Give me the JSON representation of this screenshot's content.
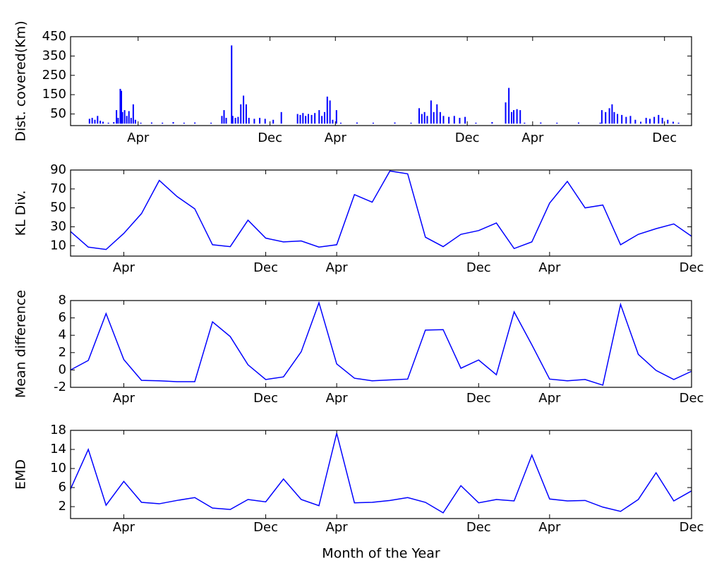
{
  "chart_data": [
    {
      "type": "bar",
      "ylabel": "Dist. covered(Km)",
      "color": "#0000ff",
      "x": [
        35,
        40,
        45,
        50,
        55,
        60,
        70,
        80,
        85,
        88,
        92,
        94,
        96,
        100,
        104,
        108,
        112,
        116,
        120,
        130,
        150,
        170,
        190,
        210,
        230,
        260,
        280,
        284,
        288,
        298,
        300,
        305,
        310,
        315,
        320,
        325,
        330,
        340,
        350,
        360,
        375,
        390,
        420,
        425,
        430,
        435,
        440,
        446,
        452,
        460,
        465,
        470,
        475,
        480,
        485,
        492,
        500,
        530,
        560,
        600,
        630,
        645,
        650,
        655,
        660,
        667,
        672,
        678,
        684,
        690,
        700,
        710,
        720,
        730,
        750,
        780,
        805,
        811,
        816,
        820,
        826,
        832,
        840,
        870,
        900,
        940,
        980,
        983,
        990,
        997,
        1002,
        1006,
        1012,
        1020,
        1028,
        1036,
        1045,
        1055,
        1065,
        1072,
        1080,
        1088,
        1095,
        1105,
        1115,
        1125
      ],
      "values": [
        25,
        30,
        20,
        40,
        15,
        10,
        5,
        8,
        70,
        30,
        180,
        170,
        60,
        70,
        40,
        65,
        30,
        100,
        20,
        5,
        6,
        5,
        8,
        5,
        6,
        5,
        40,
        70,
        30,
        405,
        40,
        30,
        35,
        100,
        145,
        100,
        30,
        25,
        30,
        25,
        20,
        60,
        50,
        45,
        55,
        40,
        50,
        45,
        55,
        70,
        40,
        60,
        140,
        120,
        20,
        70,
        5,
        6,
        5,
        6,
        5,
        80,
        50,
        60,
        40,
        120,
        60,
        100,
        60,
        40,
        35,
        40,
        30,
        35,
        5,
        8,
        110,
        185,
        60,
        70,
        75,
        70,
        5,
        6,
        5,
        6,
        5,
        70,
        60,
        80,
        100,
        60,
        50,
        45,
        35,
        40,
        20,
        10,
        30,
        25,
        35,
        45,
        30,
        20,
        10,
        5
      ],
      "xlim": [
        0,
        1149
      ],
      "xticks": [
        {
          "value": 125,
          "label": "Apr"
        },
        {
          "value": 369,
          "label": "Dec"
        },
        {
          "value": 490,
          "label": "Apr"
        },
        {
          "value": 734,
          "label": "Dec"
        },
        {
          "value": 855,
          "label": "Apr"
        },
        {
          "value": 1099,
          "label": "Dec"
        }
      ],
      "ylim": [
        -10,
        450
      ],
      "yticks": [
        50,
        150,
        250,
        350,
        450
      ]
    },
    {
      "type": "line",
      "ylabel": "KL Div.",
      "color": "#0000ff",
      "categories": [
        null,
        null,
        null,
        "Apr",
        null,
        null,
        null,
        null,
        null,
        null,
        null,
        "Dec",
        null,
        null,
        null,
        "Apr",
        null,
        null,
        null,
        null,
        null,
        null,
        null,
        "Dec",
        null,
        null,
        null,
        "Apr",
        null,
        null,
        null,
        null,
        null,
        null,
        null,
        "Dec"
      ],
      "values": [
        25,
        8.5,
        6,
        23,
        44,
        79,
        62,
        49,
        11,
        9,
        37,
        18,
        14,
        15,
        8.5,
        11,
        64,
        56,
        89,
        86,
        19,
        9,
        22,
        26,
        34,
        7,
        14,
        55,
        78,
        50,
        53,
        11,
        22,
        28,
        33,
        20
      ],
      "ylim": [
        -1,
        90
      ],
      "yticks": [
        10,
        30,
        50,
        70,
        90
      ]
    },
    {
      "type": "line",
      "ylabel": "Mean difference",
      "color": "#0000ff",
      "categories": [
        null,
        null,
        null,
        "Apr",
        null,
        null,
        null,
        null,
        null,
        null,
        null,
        "Dec",
        null,
        null,
        null,
        "Apr",
        null,
        null,
        null,
        null,
        null,
        null,
        null,
        "Dec",
        null,
        null,
        null,
        "Apr",
        null,
        null,
        null,
        null,
        null,
        null,
        null,
        "Dec"
      ],
      "values": [
        0,
        1.1,
        6.5,
        1.2,
        -1.2,
        -1.25,
        -1.35,
        -1.35,
        5.55,
        3.85,
        0.6,
        -1.1,
        -0.8,
        2.1,
        7.75,
        0.7,
        -0.95,
        -1.25,
        -1.15,
        -1.05,
        4.6,
        4.65,
        0.2,
        1.15,
        -0.55,
        6.7,
        2.9,
        -1.05,
        -1.25,
        -1.1,
        -1.75,
        7.55,
        1.8,
        -0.05,
        -1.1,
        -0.15
      ],
      "ylim": [
        -2,
        8
      ],
      "yticks": [
        -2,
        0,
        2,
        4,
        6,
        8
      ]
    },
    {
      "type": "line",
      "ylabel": "EMD",
      "xlabel": "Month of the Year",
      "color": "#0000ff",
      "categories": [
        null,
        null,
        null,
        "Apr",
        null,
        null,
        null,
        null,
        null,
        null,
        null,
        "Dec",
        null,
        null,
        null,
        "Apr",
        null,
        null,
        null,
        null,
        null,
        null,
        null,
        "Dec",
        null,
        null,
        null,
        "Apr",
        null,
        null,
        null,
        null,
        null,
        null,
        null,
        "Dec"
      ],
      "values": [
        5.7,
        14.0,
        2.3,
        7.3,
        2.9,
        2.6,
        3.3,
        3.9,
        1.7,
        1.4,
        3.5,
        3.0,
        7.8,
        3.5,
        2.2,
        17.4,
        2.8,
        2.9,
        3.3,
        3.9,
        2.9,
        0.7,
        6.4,
        2.8,
        3.5,
        3.2,
        12.8,
        3.6,
        3.2,
        3.3,
        1.9,
        1.0,
        3.5,
        9.1,
        3.2,
        5.3
      ],
      "ylim": [
        -0.5,
        18
      ],
      "yticks": [
        2,
        6,
        10,
        14,
        18
      ]
    }
  ]
}
